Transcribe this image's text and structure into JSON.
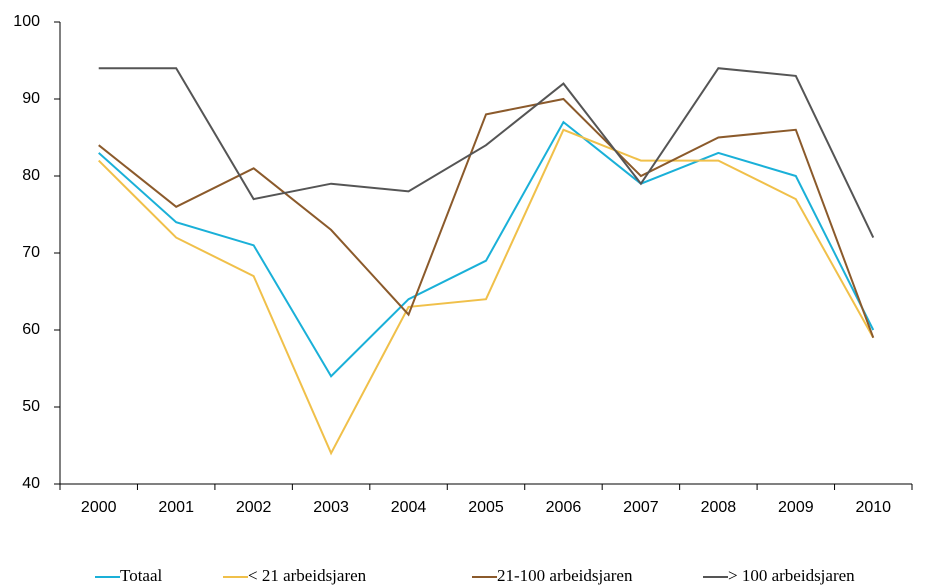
{
  "chart_data": {
    "type": "line",
    "categories": [
      "2000",
      "2001",
      "2002",
      "2003",
      "2004",
      "2005",
      "2006",
      "2007",
      "2008",
      "2009",
      "2010"
    ],
    "series": [
      {
        "name": "Totaal",
        "color": "#1ab0d8",
        "values": [
          83,
          74,
          71,
          54,
          64,
          69,
          87,
          79,
          83,
          80,
          60
        ]
      },
      {
        "name": "< 21 arbeidsjaren",
        "color": "#f0c04a",
        "values": [
          82,
          72,
          67,
          44,
          63,
          64,
          86,
          82,
          82,
          77,
          59
        ]
      },
      {
        "name": "21-100 arbeidsjaren",
        "color": "#8b5a2b",
        "values": [
          84,
          76,
          81,
          73,
          62,
          88,
          90,
          80,
          85,
          86,
          59
        ]
      },
      {
        "name": "> 100 arbeidsjaren",
        "color": "#555555",
        "values": [
          94,
          94,
          77,
          79,
          78,
          84,
          92,
          79,
          94,
          93,
          72
        ]
      }
    ],
    "ylim": [
      40,
      100
    ],
    "yticks": [
      40,
      50,
      60,
      70,
      80,
      90,
      100
    ],
    "grid": false,
    "legend": "bottom"
  }
}
